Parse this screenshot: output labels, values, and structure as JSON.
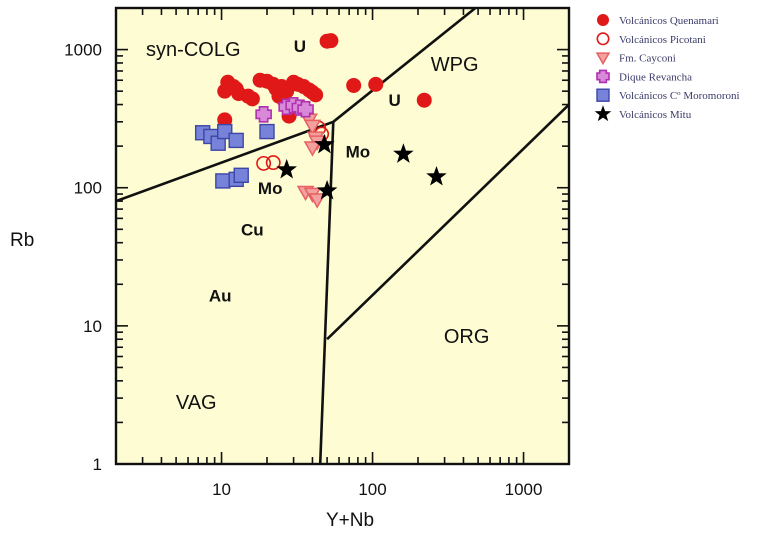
{
  "chart_data": {
    "type": "scatter",
    "title": "",
    "xlabel": "Y+Nb",
    "ylabel": "Rb",
    "xscale": "log",
    "yscale": "log",
    "xlim": [
      2,
      2000
    ],
    "ylim": [
      1,
      2000
    ],
    "x_ticks": [
      {
        "value": 10,
        "label": "10"
      },
      {
        "value": 100,
        "label": "100"
      },
      {
        "value": 1000,
        "label": "1000"
      }
    ],
    "y_ticks": [
      {
        "value": 1,
        "label": "1"
      },
      {
        "value": 10,
        "label": "10"
      },
      {
        "value": 100,
        "label": "100"
      },
      {
        "value": 1000,
        "label": "1000"
      }
    ],
    "background_color": "#fdfcd2",
    "field_labels": [
      {
        "text": "syn-COLG",
        "x": 6.5,
        "y": 900
      },
      {
        "text": "WPG",
        "x": 350,
        "y": 700
      },
      {
        "text": "ORG",
        "x": 420,
        "y": 7.5
      },
      {
        "text": "VAG",
        "x": 6.8,
        "y": 2.5
      }
    ],
    "ore_labels": [
      {
        "text": "U",
        "x": 33,
        "y": 960
      },
      {
        "text": "U",
        "x": 140,
        "y": 390
      },
      {
        "text": "Mo",
        "x": 80,
        "y": 165
      },
      {
        "text": "Mo",
        "x": 21,
        "y": 90
      },
      {
        "text": "Cu",
        "x": 16,
        "y": 45
      },
      {
        "text": "Au",
        "x": 9.8,
        "y": 15
      }
    ],
    "boundaries": [
      {
        "points": [
          [
            2,
            80
          ],
          [
            55,
            300
          ],
          [
            480,
            2000
          ]
        ]
      },
      {
        "points": [
          [
            55,
            300
          ],
          [
            45,
            1
          ]
        ]
      },
      {
        "points": [
          [
            50,
            8
          ],
          [
            2000,
            400
          ]
        ]
      }
    ],
    "series": [
      {
        "name": "Volcánicos Quenamari",
        "marker": "filled-circle",
        "color": "#e01818",
        "points": [
          [
            10.5,
            500
          ],
          [
            11,
            580
          ],
          [
            12,
            540
          ],
          [
            12.5,
            520
          ],
          [
            13,
            480
          ],
          [
            15,
            460
          ],
          [
            16,
            440
          ],
          [
            18,
            600
          ],
          [
            20,
            590
          ],
          [
            22,
            560
          ],
          [
            23,
            520
          ],
          [
            25,
            540
          ],
          [
            27,
            500
          ],
          [
            30,
            580
          ],
          [
            32,
            560
          ],
          [
            35,
            540
          ],
          [
            38,
            510
          ],
          [
            40,
            490
          ],
          [
            42,
            470
          ],
          [
            24,
            460
          ],
          [
            26,
            430
          ],
          [
            28,
            330
          ],
          [
            10.5,
            310
          ],
          [
            50,
            1150
          ],
          [
            53,
            1160
          ],
          [
            75,
            550
          ],
          [
            105,
            560
          ],
          [
            220,
            430
          ]
        ]
      },
      {
        "name": "Volcánicos Picotani",
        "marker": "open-circle",
        "color": "#e01818",
        "points": [
          [
            19,
            150
          ],
          [
            22,
            152
          ],
          [
            44,
            270
          ],
          [
            46,
            245
          ]
        ]
      },
      {
        "name": "Fm. Cayconi",
        "marker": "triangle-down",
        "color": "#e86060",
        "points": [
          [
            38,
            310
          ],
          [
            40,
            280
          ],
          [
            42,
            230
          ],
          [
            43,
            215
          ],
          [
            40,
            195
          ],
          [
            36,
            93
          ],
          [
            40,
            90
          ],
          [
            43,
            82
          ]
        ]
      },
      {
        "name": "Dique Revancha",
        "marker": "plus",
        "color": "#b030b0",
        "points": [
          [
            19,
            340
          ],
          [
            27,
            385
          ],
          [
            30,
            395
          ],
          [
            33,
            380
          ],
          [
            36,
            370
          ]
        ]
      },
      {
        "name": "Volcánicos Cº Moromoroni",
        "marker": "square",
        "color": "#7783d8",
        "points": [
          [
            7.5,
            250
          ],
          [
            8.5,
            235
          ],
          [
            9.5,
            210
          ],
          [
            10.5,
            255
          ],
          [
            12.5,
            220
          ],
          [
            20,
            255
          ],
          [
            10.2,
            112
          ],
          [
            12.5,
            115
          ],
          [
            13.5,
            123
          ]
        ]
      },
      {
        "name": "Volcánicos Mitu",
        "marker": "star",
        "color": "#000000",
        "points": [
          [
            27,
            135
          ],
          [
            48,
            205
          ],
          [
            50,
            95
          ],
          [
            160,
            175
          ],
          [
            265,
            120
          ]
        ]
      }
    ]
  }
}
